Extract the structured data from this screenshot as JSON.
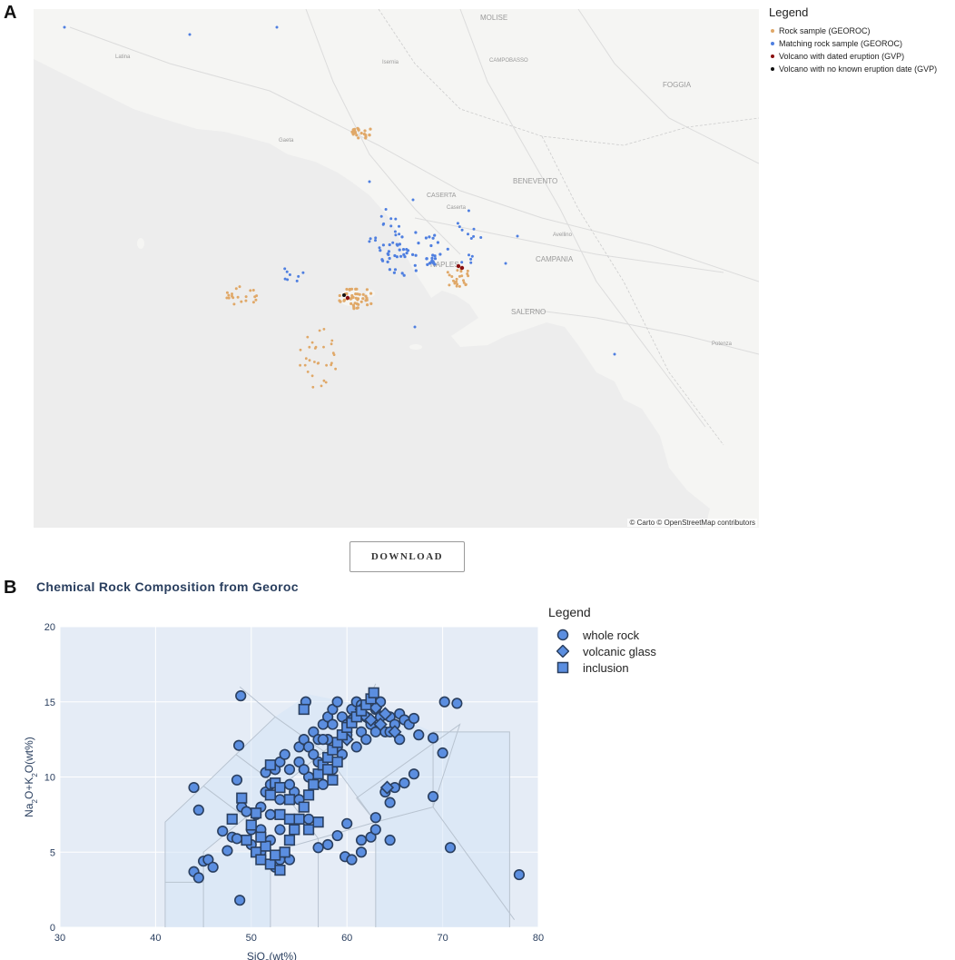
{
  "panels": {
    "a": "A",
    "b": "B"
  },
  "map": {
    "attribution": "© Carto © OpenStreetMap contributors",
    "place_labels": [
      "MOLISE",
      "CAMPOBASSO",
      "FOGGIA",
      "BENEVENTO",
      "CASERTA",
      "CAMPANIA",
      "NAPLES",
      "SALERNO",
      "Latina",
      "Gaeta",
      "Isernia",
      "Avellino",
      "Potenza",
      "Caserta"
    ],
    "legend": {
      "title": "Legend",
      "items": [
        {
          "label": "Rock sample (GEOROC)",
          "color": "#e0a868"
        },
        {
          "label": "Matching rock sample (GEOROC)",
          "color": "#4f7fe0"
        },
        {
          "label": "Volcano with dated eruption (GVP)",
          "color": "#8b1010"
        },
        {
          "label": "Volcano with no known eruption date (GVP)",
          "color": "#111111"
        }
      ]
    },
    "download_label": "DOWNLOAD"
  },
  "chart": {
    "title": "Chemical Rock Composition from Georoc",
    "legend": {
      "title": "Legend",
      "items": [
        {
          "label": "whole rock",
          "symbol": "circle"
        },
        {
          "label": "volcanic glass",
          "symbol": "diamond"
        },
        {
          "label": "inclusion",
          "symbol": "square"
        }
      ]
    }
  },
  "chart_data": {
    "type": "scatter",
    "title": "Chemical Rock Composition from Georoc",
    "xlabel": "SiO2(wt%)",
    "ylabel": "Na2O+K2O(wt%)",
    "xlim": [
      30,
      80
    ],
    "ylim": [
      0,
      20
    ],
    "x_ticks": [
      30,
      40,
      50,
      60,
      70,
      80
    ],
    "y_ticks": [
      0,
      5,
      10,
      15,
      20
    ],
    "marker_color": "#5b8ee0",
    "marker_edge": "#2a3f5f",
    "series": [
      {
        "name": "whole rock",
        "symbol": "circle",
        "points": [
          [
            44,
            9.3
          ],
          [
            44.5,
            7.8
          ],
          [
            44,
            3.7
          ],
          [
            44.5,
            3.3
          ],
          [
            45,
            4.4
          ],
          [
            45.5,
            4.5
          ],
          [
            46,
            4.0
          ],
          [
            47,
            6.4
          ],
          [
            47.5,
            5.1
          ],
          [
            48,
            6.0
          ],
          [
            48.5,
            5.9
          ],
          [
            48.5,
            9.8
          ],
          [
            48.7,
            12.1
          ],
          [
            48.9,
            15.4
          ],
          [
            48.8,
            1.8
          ],
          [
            49,
            8.0
          ],
          [
            49.5,
            7.7
          ],
          [
            50,
            6.5
          ],
          [
            50.5,
            7.5
          ],
          [
            51,
            8.0
          ],
          [
            51.5,
            9.0
          ],
          [
            51.5,
            10.3
          ],
          [
            52,
            9.5
          ],
          [
            52.5,
            10.5
          ],
          [
            53,
            11.0
          ],
          [
            53.5,
            11.5
          ],
          [
            54,
            10.5
          ],
          [
            54.5,
            9.0
          ],
          [
            55,
            8.5
          ],
          [
            55,
            12.0
          ],
          [
            55.5,
            12.5
          ],
          [
            55.7,
            15.0
          ],
          [
            56,
            12.0
          ],
          [
            56,
            7.2
          ],
          [
            56.5,
            13.0
          ],
          [
            57,
            12.5
          ],
          [
            57.5,
            13.5
          ],
          [
            58,
            14.0
          ],
          [
            58.5,
            14.5
          ],
          [
            59,
            15.0
          ],
          [
            59.5,
            14.0
          ],
          [
            60,
            13.5
          ],
          [
            60.5,
            14.5
          ],
          [
            61,
            15.0
          ],
          [
            61.5,
            13.0
          ],
          [
            62,
            14.0
          ],
          [
            62.5,
            13.5
          ],
          [
            63,
            14.5
          ],
          [
            63.5,
            15.0
          ],
          [
            64,
            13.0
          ],
          [
            64.5,
            14.0
          ],
          [
            65,
            13.5
          ],
          [
            65.5,
            14.2
          ],
          [
            66,
            13.8
          ],
          [
            66.5,
            13.5
          ],
          [
            67,
            13.9
          ],
          [
            67.5,
            12.8
          ],
          [
            69,
            12.6
          ],
          [
            70,
            11.6
          ],
          [
            70.2,
            15.0
          ],
          [
            71.5,
            14.9
          ],
          [
            69,
            8.7
          ],
          [
            70.8,
            5.3
          ],
          [
            78,
            3.5
          ],
          [
            64,
            9.0
          ],
          [
            64.5,
            8.3
          ],
          [
            65,
            9.3
          ],
          [
            66,
            9.6
          ],
          [
            67,
            10.2
          ],
          [
            63,
            7.3
          ],
          [
            62.5,
            6.0
          ],
          [
            64.5,
            5.8
          ],
          [
            63,
            6.5
          ],
          [
            57,
            5.3
          ],
          [
            58,
            5.5
          ],
          [
            59,
            6.1
          ],
          [
            60,
            6.9
          ],
          [
            61.5,
            5.8
          ],
          [
            59.8,
            4.7
          ],
          [
            61.5,
            5.0
          ],
          [
            60.5,
            4.5
          ],
          [
            52.5,
            4.0
          ],
          [
            53,
            4.5
          ],
          [
            54,
            4.5
          ],
          [
            51,
            5.0
          ],
          [
            52,
            5.8
          ],
          [
            53,
            6.5
          ],
          [
            58,
            12.5
          ],
          [
            59,
            12.0
          ],
          [
            60,
            12.8
          ],
          [
            61,
            12.0
          ],
          [
            62,
            12.5
          ],
          [
            63,
            13.0
          ],
          [
            57,
            11.0
          ],
          [
            56,
            10.0
          ],
          [
            55,
            11.0
          ],
          [
            54,
            9.5
          ],
          [
            53,
            8.5
          ],
          [
            52,
            7.5
          ],
          [
            51,
            6.5
          ],
          [
            50,
            5.5
          ],
          [
            57.5,
            9.5
          ],
          [
            58.5,
            10.5
          ],
          [
            59.5,
            11.5
          ],
          [
            60.5,
            13.8
          ],
          [
            61.5,
            14.8
          ],
          [
            62.5,
            15.0
          ],
          [
            63.5,
            14.0
          ],
          [
            64.5,
            13.0
          ],
          [
            65.5,
            12.5
          ],
          [
            55.5,
            10.5
          ],
          [
            56.5,
            11.5
          ],
          [
            57.5,
            12.5
          ],
          [
            58.5,
            13.5
          ]
        ]
      },
      {
        "name": "volcanic glass",
        "symbol": "diamond",
        "points": [
          [
            61.5,
            14.5
          ],
          [
            62,
            14.0
          ],
          [
            62.5,
            13.8
          ],
          [
            63,
            14.6
          ],
          [
            63.5,
            13.5
          ],
          [
            64,
            14.2
          ],
          [
            64.2,
            9.3
          ],
          [
            60.5,
            13.8
          ],
          [
            65,
            13.0
          ],
          [
            60,
            12.5
          ]
        ]
      },
      {
        "name": "inclusion",
        "symbol": "square",
        "points": [
          [
            48,
            7.2
          ],
          [
            49,
            8.6
          ],
          [
            49.5,
            5.8
          ],
          [
            50,
            6.8
          ],
          [
            50.5,
            5.0
          ],
          [
            51,
            4.5
          ],
          [
            51.5,
            5.4
          ],
          [
            52,
            4.2
          ],
          [
            52.5,
            4.8
          ],
          [
            53,
            3.8
          ],
          [
            53.5,
            5.0
          ],
          [
            54,
            5.8
          ],
          [
            54.5,
            6.5
          ],
          [
            55,
            7.2
          ],
          [
            55.5,
            8.0
          ],
          [
            56,
            8.8
          ],
          [
            56.5,
            9.5
          ],
          [
            57,
            10.2
          ],
          [
            57.5,
            10.8
          ],
          [
            58,
            11.3
          ],
          [
            58.5,
            11.8
          ],
          [
            59,
            12.3
          ],
          [
            59.5,
            12.8
          ],
          [
            60,
            13.3
          ],
          [
            60.5,
            13.6
          ],
          [
            61,
            14.0
          ],
          [
            61.5,
            14.4
          ],
          [
            62,
            14.8
          ],
          [
            62.5,
            15.2
          ],
          [
            62.8,
            15.6
          ],
          [
            52,
            10.8
          ],
          [
            52.5,
            9.6
          ],
          [
            53,
            9.3
          ],
          [
            54,
            8.5
          ],
          [
            55.5,
            14.5
          ],
          [
            58,
            10.5
          ],
          [
            58.5,
            9.8
          ],
          [
            59,
            11.0
          ],
          [
            56,
            6.5
          ],
          [
            57,
            7.0
          ],
          [
            51,
            6.0
          ],
          [
            50.5,
            7.6
          ],
          [
            52,
            8.8
          ],
          [
            53,
            7.5
          ],
          [
            54,
            7.2
          ]
        ]
      }
    ]
  }
}
